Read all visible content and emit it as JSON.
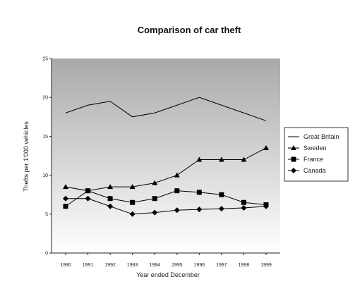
{
  "chart_data": {
    "type": "line",
    "title": "Comparison of car theft",
    "xlabel": "Year ended December",
    "ylabel": "Thefts per 1'000 vehicles",
    "categories": [
      "1990",
      "1991",
      "1992",
      "1993",
      "1994",
      "1995",
      "1996",
      "1997",
      "1998",
      "1999"
    ],
    "ylim": [
      0,
      25
    ],
    "yticks": [
      "0",
      "5",
      "10",
      "15",
      "20",
      "25"
    ],
    "grid": false,
    "legend_position": "right",
    "plot_background": {
      "top": "#a9a9a9",
      "bottom": "#ffffff"
    },
    "series": [
      {
        "name": "Great Britain",
        "marker": "none",
        "color": "#000000",
        "values": [
          18,
          19,
          19.5,
          17.5,
          18,
          19,
          20,
          19,
          18,
          17
        ]
      },
      {
        "name": "Sweden",
        "marker": "triangle",
        "color": "#000000",
        "values": [
          8.5,
          8,
          8.5,
          8.5,
          9,
          10,
          12,
          12,
          12,
          13.5
        ]
      },
      {
        "name": "France",
        "marker": "square",
        "color": "#000000",
        "values": [
          6,
          8,
          7,
          6.5,
          7,
          8,
          7.8,
          7.5,
          6.5,
          6.2
        ]
      },
      {
        "name": "Canada",
        "marker": "diamond",
        "color": "#000000",
        "values": [
          7,
          7,
          6,
          5,
          5.2,
          5.5,
          5.6,
          5.7,
          5.8,
          6
        ]
      }
    ]
  }
}
